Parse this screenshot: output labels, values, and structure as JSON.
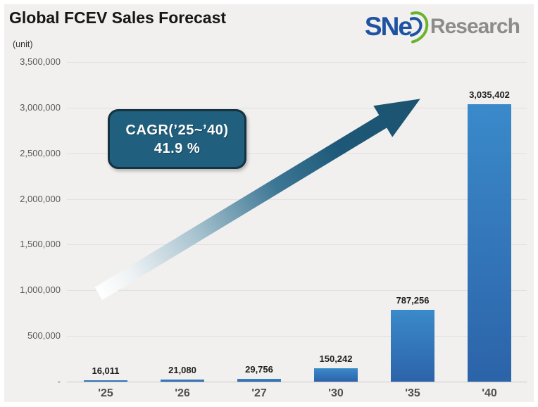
{
  "header": {
    "title": "Global FCEV Sales Forecast",
    "unit_label": "(unit)",
    "logo": {
      "sne_text": "SNe",
      "research_text": "Research",
      "blue": "#1e52a2",
      "green": "#6ab32e",
      "gray": "#8c8c8c"
    }
  },
  "annotation": {
    "line1": "CAGR(’25~’40)",
    "line2": "41.9 %",
    "box_fill": "#20607e",
    "box_border": "#14323f",
    "arrow_color": "#1d5878"
  },
  "chart_data": {
    "type": "bar",
    "title": "Global FCEV Sales Forecast",
    "xlabel": "",
    "ylabel": "unit",
    "categories": [
      "'25",
      "'26",
      "'27",
      "'30",
      "'35",
      "'40"
    ],
    "values": [
      16011,
      21080,
      29756,
      150242,
      787256,
      3035402
    ],
    "value_labels": [
      "16,011",
      "21,080",
      "29,756",
      "150,242",
      "787,256",
      "3,035,402"
    ],
    "ylim": [
      0,
      3500000
    ],
    "grid": true,
    "legend": false,
    "bar_color_top": "#3a8aca",
    "bar_color_bottom": "#2c63a9",
    "annotation_text": "CAGR(’25~’40) 41.9 %",
    "yticks": [
      {
        "v": 0,
        "label": "-"
      },
      {
        "v": 500000,
        "label": "500,000"
      },
      {
        "v": 1000000,
        "label": "1,000,000"
      },
      {
        "v": 1500000,
        "label": "1,500,000"
      },
      {
        "v": 2000000,
        "label": "2,000,000"
      },
      {
        "v": 2500000,
        "label": "2,500,000"
      },
      {
        "v": 3000000,
        "label": "3,000,000"
      },
      {
        "v": 3500000,
        "label": "3,500,000"
      }
    ]
  }
}
